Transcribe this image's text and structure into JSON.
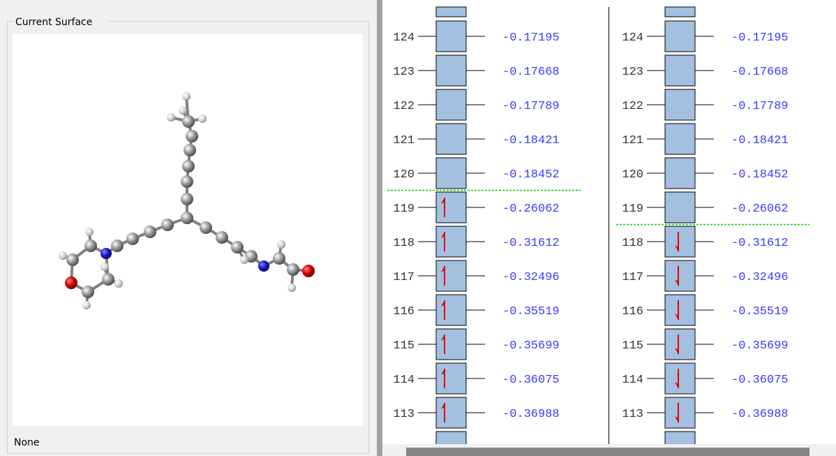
{
  "panel": {
    "title": "Current Surface",
    "status": "None"
  },
  "levels": {
    "alpha": [
      {
        "number": "124",
        "energy": "-0.17195",
        "occupied": false
      },
      {
        "number": "123",
        "energy": "-0.17668",
        "occupied": false
      },
      {
        "number": "122",
        "energy": "-0.17789",
        "occupied": false
      },
      {
        "number": "121",
        "energy": "-0.18421",
        "occupied": false
      },
      {
        "number": "120",
        "energy": "-0.18452",
        "occupied": false
      },
      {
        "number": "119",
        "energy": "-0.26062",
        "occupied": true
      },
      {
        "number": "118",
        "energy": "-0.31612",
        "occupied": true
      },
      {
        "number": "117",
        "energy": "-0.32496",
        "occupied": true
      },
      {
        "number": "116",
        "energy": "-0.35519",
        "occupied": true
      },
      {
        "number": "115",
        "energy": "-0.35699",
        "occupied": true
      },
      {
        "number": "114",
        "energy": "-0.36075",
        "occupied": true
      },
      {
        "number": "113",
        "energy": "-0.36988",
        "occupied": true
      }
    ],
    "beta": [
      {
        "number": "124",
        "energy": "-0.17195",
        "occupied": false
      },
      {
        "number": "123",
        "energy": "-0.17668",
        "occupied": false
      },
      {
        "number": "122",
        "energy": "-0.17789",
        "occupied": false
      },
      {
        "number": "121",
        "energy": "-0.18421",
        "occupied": false
      },
      {
        "number": "120",
        "energy": "-0.18452",
        "occupied": false
      },
      {
        "number": "119",
        "energy": "-0.26062",
        "occupied": false
      },
      {
        "number": "118",
        "energy": "-0.31612",
        "occupied": true
      },
      {
        "number": "117",
        "energy": "-0.32496",
        "occupied": true
      },
      {
        "number": "116",
        "energy": "-0.35519",
        "occupied": true
      },
      {
        "number": "115",
        "energy": "-0.35699",
        "occupied": true
      },
      {
        "number": "114",
        "energy": "-0.36075",
        "occupied": true
      },
      {
        "number": "113",
        "energy": "-0.36988",
        "occupied": true
      }
    ]
  }
}
